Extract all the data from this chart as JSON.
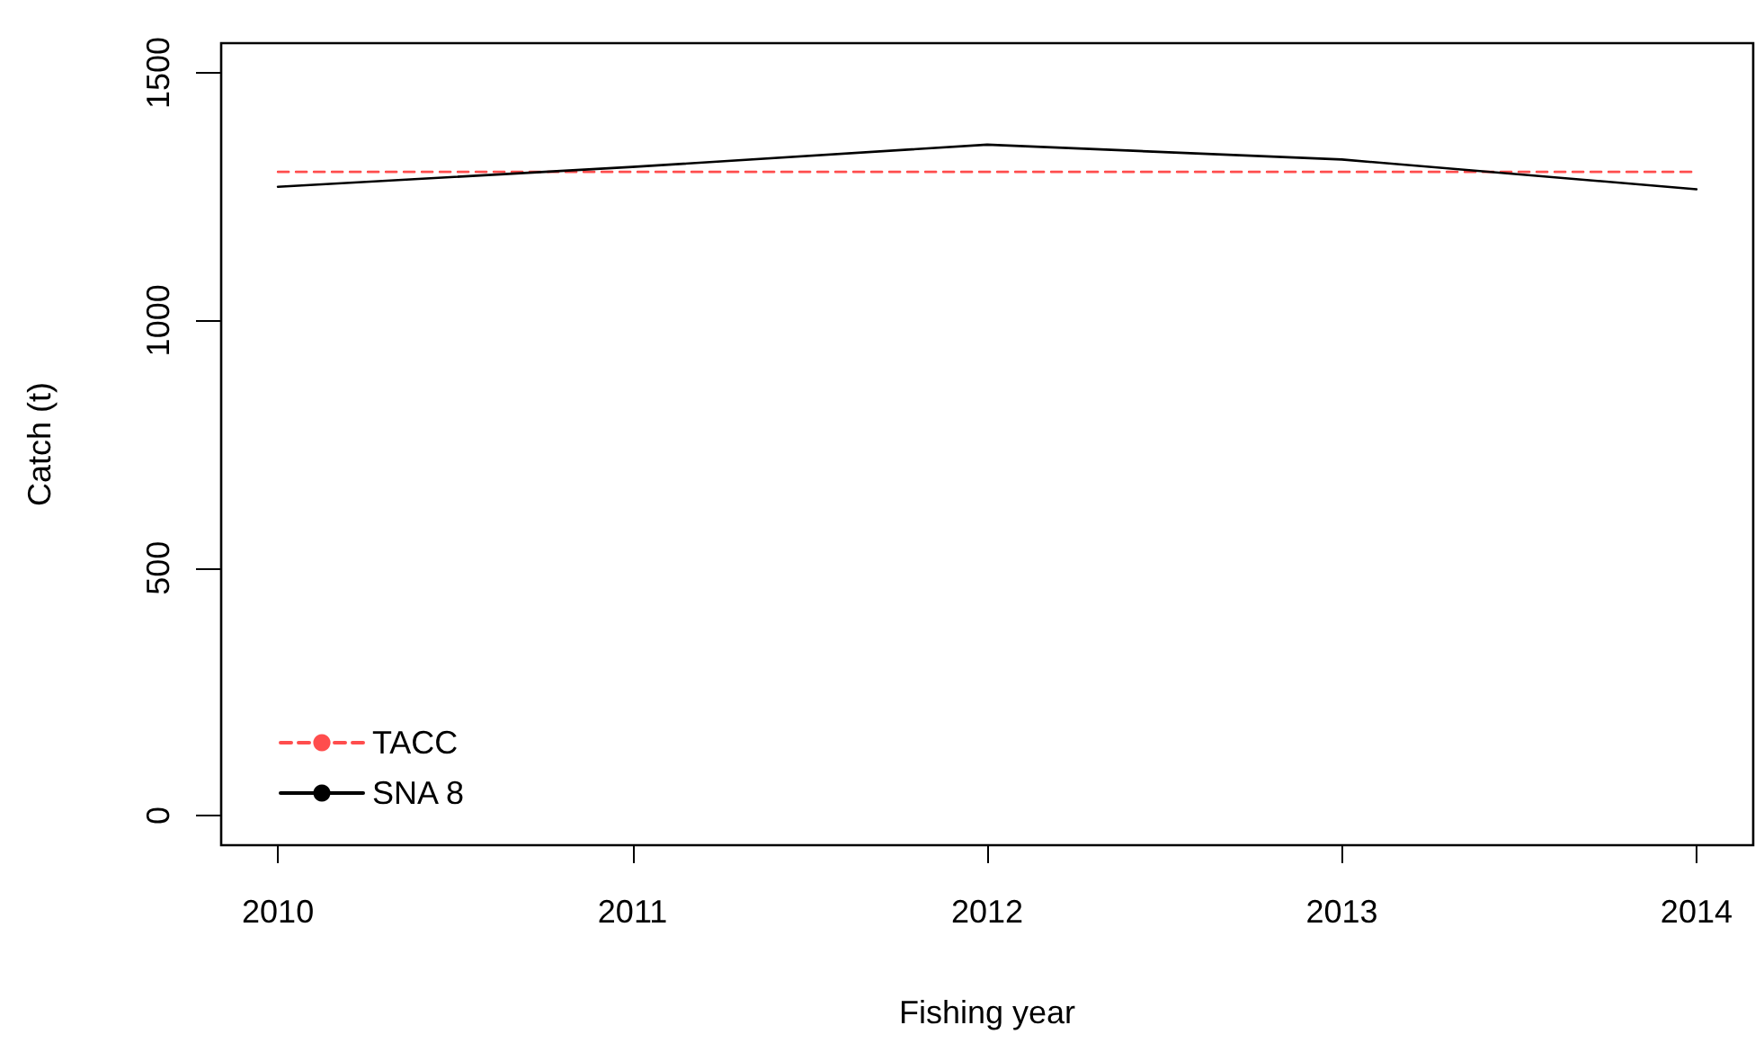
{
  "chart_data": {
    "type": "line",
    "xlabel": "Fishing year",
    "ylabel": "Catch (t)",
    "x": [
      2010,
      2011,
      2012,
      2013,
      2014
    ],
    "series": [
      {
        "name": "TACC",
        "color": "#ff4d4d",
        "line_style": "dashed",
        "values": [
          1300,
          1300,
          1300,
          1300,
          1300
        ]
      },
      {
        "name": "SNA 8",
        "color": "#000000",
        "line_style": "solid",
        "values": [
          1270,
          1310,
          1355,
          1325,
          1265
        ]
      }
    ],
    "xlim": [
      2009.84,
      2014.16
    ],
    "xticks": [
      2010,
      2011,
      2012,
      2013,
      2014
    ],
    "ylim": [
      -60,
      1560
    ],
    "yticks": [
      0,
      500,
      1000,
      1500
    ],
    "grid": false,
    "legend": "bottom left",
    "marker": "none"
  }
}
